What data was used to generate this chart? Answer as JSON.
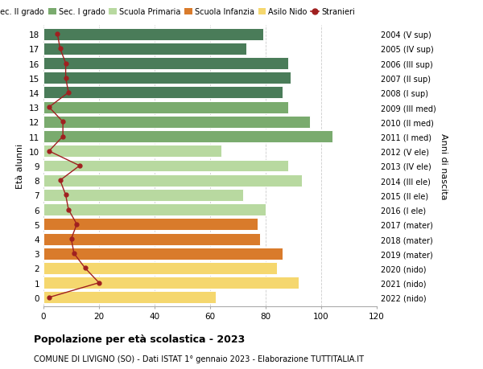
{
  "ages": [
    18,
    17,
    16,
    15,
    14,
    13,
    12,
    11,
    10,
    9,
    8,
    7,
    6,
    5,
    4,
    3,
    2,
    1,
    0
  ],
  "right_labels": [
    "2004 (V sup)",
    "2005 (IV sup)",
    "2006 (III sup)",
    "2007 (II sup)",
    "2008 (I sup)",
    "2009 (III med)",
    "2010 (II med)",
    "2011 (I med)",
    "2012 (V ele)",
    "2013 (IV ele)",
    "2014 (III ele)",
    "2015 (II ele)",
    "2016 (I ele)",
    "2017 (mater)",
    "2018 (mater)",
    "2019 (mater)",
    "2020 (nido)",
    "2021 (nido)",
    "2022 (nido)"
  ],
  "bar_values": [
    79,
    73,
    88,
    89,
    86,
    88,
    96,
    104,
    64,
    88,
    93,
    72,
    80,
    77,
    78,
    86,
    84,
    92,
    62
  ],
  "stranieri": [
    5,
    6,
    8,
    8,
    9,
    2,
    7,
    7,
    2,
    13,
    6,
    8,
    9,
    12,
    10,
    11,
    15,
    20,
    2
  ],
  "bar_colors": [
    "#4a7c59",
    "#4a7c59",
    "#4a7c59",
    "#4a7c59",
    "#4a7c59",
    "#7aab6e",
    "#7aab6e",
    "#7aab6e",
    "#b8d9a0",
    "#b8d9a0",
    "#b8d9a0",
    "#b8d9a0",
    "#b8d9a0",
    "#d97b2b",
    "#d97b2b",
    "#d97b2b",
    "#f5d76e",
    "#f5d76e",
    "#f5d76e"
  ],
  "legend_labels": [
    "Sec. II grado",
    "Sec. I grado",
    "Scuola Primaria",
    "Scuola Infanzia",
    "Asilo Nido",
    "Stranieri"
  ],
  "legend_colors": [
    "#4a7c59",
    "#7aab6e",
    "#b8d9a0",
    "#d97b2b",
    "#f5d76e",
    "#a02020"
  ],
  "stranieri_color": "#a02020",
  "ylabel_left": "Età alunni",
  "ylabel_right": "Anni di nascita",
  "xlim": [
    0,
    120
  ],
  "xticks": [
    0,
    20,
    40,
    60,
    80,
    100,
    120
  ],
  "title": "Popolazione per età scolastica - 2023",
  "subtitle": "COMUNE DI LIVIGNO (SO) - Dati ISTAT 1° gennaio 2023 - Elaborazione TUTTITALIA.IT",
  "background_color": "#ffffff",
  "grid_color": "#cccccc"
}
